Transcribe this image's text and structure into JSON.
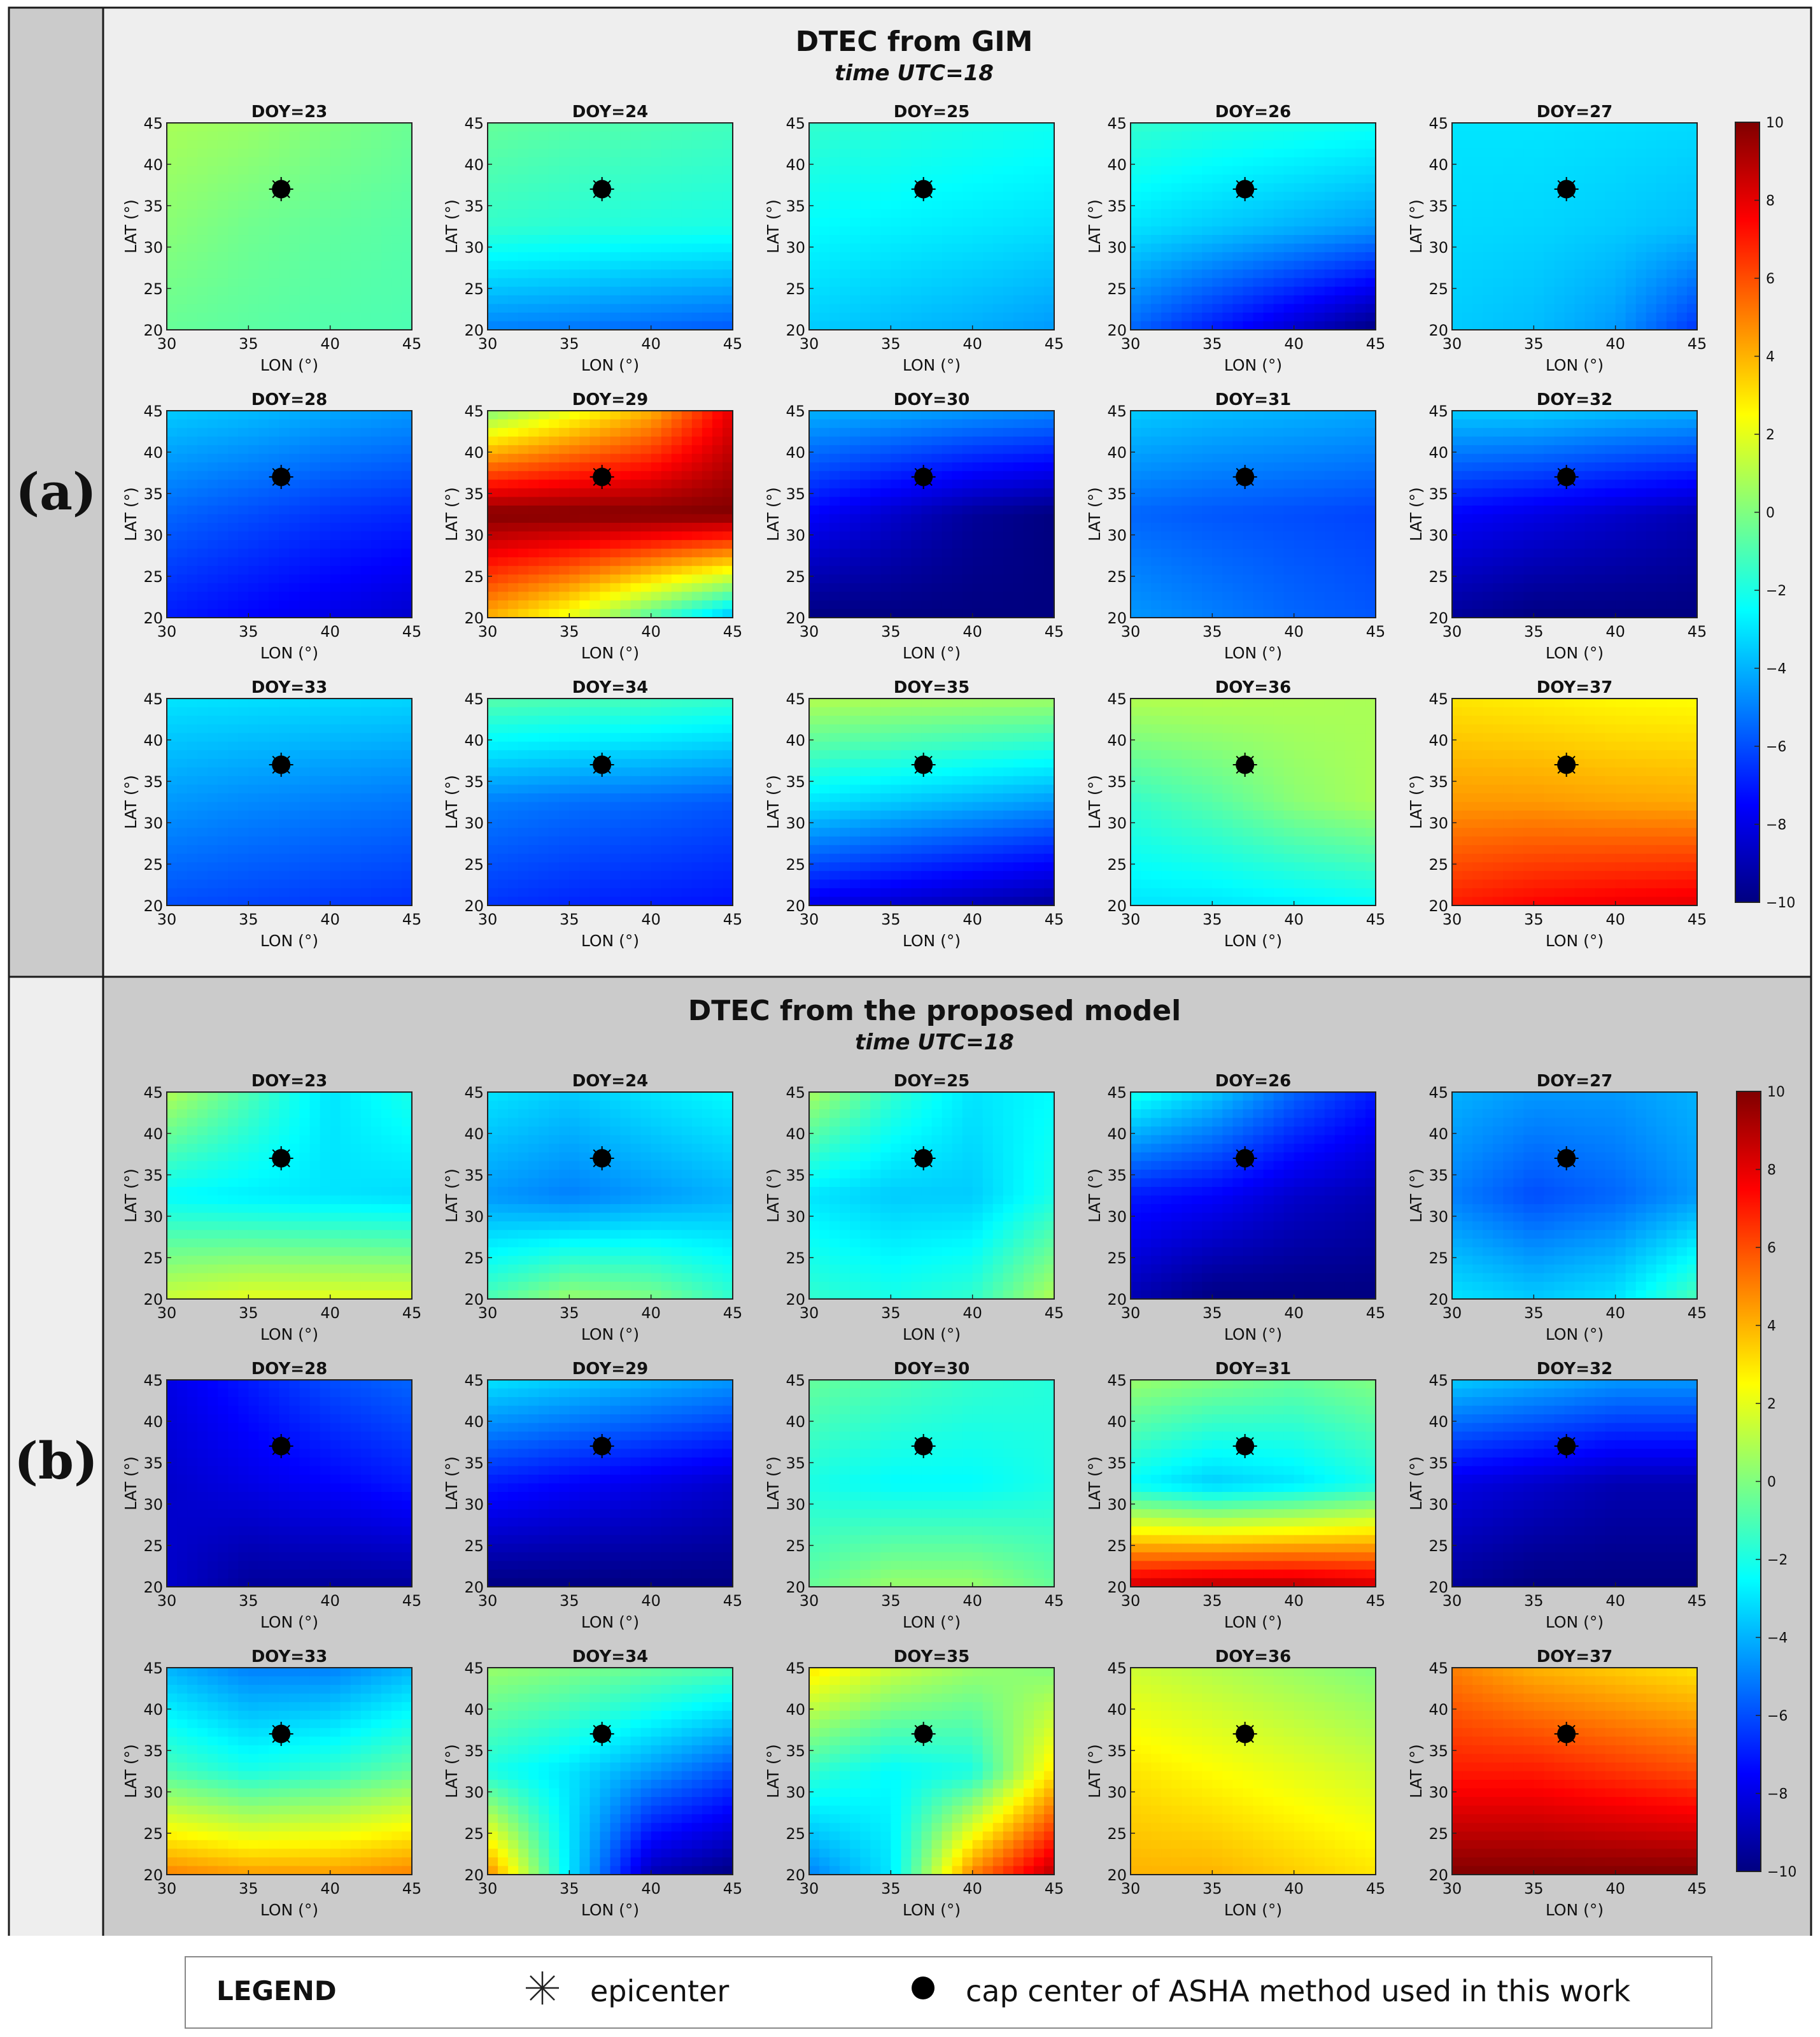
{
  "colors": {
    "panel_a_bg": "#eeeeee",
    "panel_b_bg": "#cbcbcb",
    "tab_a_bg": "#cbcbcb",
    "tab_b_bg": "#eeeeee",
    "border": "#1a1a1a"
  },
  "chart_data": [
    {
      "type": "heatmap",
      "panel_label": "(a)",
      "title": "DTEC from GIM",
      "subtitle": "time UTC=18",
      "xlabel": "LON (°)",
      "ylabel": "LAT (°)",
      "xlim": [
        30,
        45
      ],
      "ylim": [
        20,
        45
      ],
      "xticks": [
        30,
        35,
        40,
        45
      ],
      "yticks": [
        20,
        25,
        30,
        35,
        40,
        45
      ],
      "colorbar": {
        "vmin": -10,
        "vmax": 10,
        "ticks": [
          10,
          8,
          6,
          4,
          2,
          0,
          -2,
          -4,
          -6,
          -8,
          -10
        ]
      },
      "cap_center": {
        "lon": 37,
        "lat": 37
      },
      "subplots": [
        {
          "title": "DOY=23",
          "values": [
            [
              0.8,
              0.5,
              0.0,
              -0.4
            ],
            [
              0.2,
              -0.3,
              -0.6,
              -0.8
            ],
            [
              -0.5,
              -0.7,
              -0.9,
              -1.0
            ]
          ]
        },
        {
          "title": "DOY=24",
          "values": [
            [
              -0.5,
              -0.8,
              -1.0,
              -1.2
            ],
            [
              -1.5,
              -1.7,
              -1.9,
              -2.0
            ],
            [
              -5.0,
              -5.2,
              -5.5,
              -5.8
            ]
          ]
        },
        {
          "title": "DOY=25",
          "values": [
            [
              -1.5,
              -1.8,
              -2.0,
              -2.2
            ],
            [
              -2.5,
              -2.7,
              -2.9,
              -3.1
            ],
            [
              -3.5,
              -3.8,
              -4.1,
              -4.5
            ]
          ]
        },
        {
          "title": "DOY=26",
          "values": [
            [
              -1.5,
              -1.8,
              -2.0,
              -2.2
            ],
            [
              -3.0,
              -3.5,
              -4.0,
              -4.5
            ],
            [
              -5.5,
              -7.0,
              -8.5,
              -10.0
            ]
          ]
        },
        {
          "title": "DOY=27",
          "values": [
            [
              -3.0,
              -3.0,
              -3.1,
              -3.2
            ],
            [
              -3.2,
              -3.3,
              -3.5,
              -3.8
            ],
            [
              -3.5,
              -3.8,
              -4.5,
              -6.5
            ]
          ]
        },
        {
          "title": "DOY=28",
          "values": [
            [
              -3.5,
              -3.8,
              -4.2,
              -4.5
            ],
            [
              -5.5,
              -6.0,
              -6.5,
              -6.8
            ],
            [
              -7.0,
              -7.5,
              -8.0,
              -8.5
            ]
          ]
        },
        {
          "title": "DOY=29",
          "values": [
            [
              0,
              2,
              4,
              8
            ],
            [
              10,
              10,
              10,
              10
            ],
            [
              4,
              2,
              -1,
              -4
            ]
          ]
        },
        {
          "title": "DOY=30",
          "values": [
            [
              -4.0,
              -4.2,
              -4.5,
              -4.8
            ],
            [
              -7.5,
              -8.5,
              -9.5,
              -10.0
            ],
            [
              -10.0,
              -10.0,
              -10.0,
              -10.0
            ]
          ]
        },
        {
          "title": "DOY=31",
          "values": [
            [
              -3.5,
              -3.8,
              -4.0,
              -4.2
            ],
            [
              -5.5,
              -5.8,
              -6.0,
              -6.2
            ],
            [
              -4.5,
              -5.0,
              -5.5,
              -5.8
            ]
          ]
        },
        {
          "title": "DOY=32",
          "values": [
            [
              -3.5,
              -3.5,
              -3.8,
              -4.0
            ],
            [
              -7.5,
              -8.0,
              -8.5,
              -9.0
            ],
            [
              -9.5,
              -10.0,
              -10.0,
              -10.0
            ]
          ]
        },
        {
          "title": "DOY=33",
          "values": [
            [
              -3.0,
              -3.1,
              -3.2,
              -3.3
            ],
            [
              -4.5,
              -4.8,
              -5.0,
              -5.2
            ],
            [
              -6.0,
              -6.2,
              -6.4,
              -6.6
            ]
          ]
        },
        {
          "title": "DOY=34",
          "values": [
            [
              -0.8,
              -1.0,
              -1.2,
              -1.5
            ],
            [
              -5.0,
              -5.3,
              -5.5,
              -5.8
            ],
            [
              -6.5,
              -6.8,
              -7.0,
              -7.2
            ]
          ]
        },
        {
          "title": "DOY=35",
          "values": [
            [
              1.0,
              0.8,
              0.7,
              0.6
            ],
            [
              -3.0,
              -3.5,
              -4.0,
              -4.5
            ],
            [
              -8.0,
              -8.5,
              -9.0,
              -9.5
            ]
          ]
        },
        {
          "title": "DOY=36",
          "values": [
            [
              1.0,
              1.0,
              0.9,
              0.8
            ],
            [
              -1.5,
              -0.8,
              0.2,
              0.8
            ],
            [
              -3.0,
              -3.0,
              -2.8,
              -2.5
            ]
          ]
        },
        {
          "title": "DOY=37",
          "values": [
            [
              3.0,
              2.8,
              2.6,
              2.5
            ],
            [
              4.5,
              4.5,
              4.3,
              4.2
            ],
            [
              7.0,
              7.5,
              7.8,
              8.0
            ]
          ]
        }
      ]
    },
    {
      "type": "heatmap",
      "panel_label": "(b)",
      "title": "DTEC from the proposed model",
      "subtitle": "time UTC=18",
      "xlabel": "LON (°)",
      "ylabel": "LAT (°)",
      "xlim": [
        30,
        45
      ],
      "ylim": [
        20,
        45
      ],
      "xticks": [
        30,
        35,
        40,
        45
      ],
      "yticks": [
        20,
        25,
        30,
        35,
        40,
        45
      ],
      "colorbar": {
        "vmin": -10,
        "vmax": 10,
        "ticks": [
          10,
          8,
          6,
          4,
          2,
          0,
          -2,
          -4,
          -6,
          -8,
          -10
        ]
      },
      "cap_center": {
        "lon": 37,
        "lat": 37
      },
      "subplots": [
        {
          "title": "DOY=23",
          "values": [
            [
              1.0,
              -1.0,
              -3.0,
              -2.0
            ],
            [
              -2.5,
              -2.8,
              -3.0,
              -3.2
            ],
            [
              1.5,
              2.0,
              2.0,
              2.0
            ]
          ]
        },
        {
          "title": "DOY=24",
          "values": [
            [
              -3.0,
              -3.5,
              -3.0,
              -2.5
            ],
            [
              -4.5,
              -5.0,
              -4.5,
              -4.0
            ],
            [
              -1.0,
              0.5,
              0.0,
              -1.5
            ]
          ]
        },
        {
          "title": "DOY=25",
          "values": [
            [
              0.8,
              -1.5,
              -3.0,
              -2.5
            ],
            [
              -3.0,
              -3.5,
              -3.5,
              -2.0
            ],
            [
              -1.5,
              -2.0,
              -1.5,
              1.0
            ]
          ]
        },
        {
          "title": "DOY=26",
          "values": [
            [
              -2.0,
              -3.5,
              -5.5,
              -7.0
            ],
            [
              -7.0,
              -7.5,
              -8.5,
              -9.0
            ],
            [
              -9.0,
              -10.0,
              -10.0,
              -10.0
            ]
          ]
        },
        {
          "title": "DOY=27",
          "values": [
            [
              -4.0,
              -4.5,
              -4.5,
              -4.0
            ],
            [
              -5.0,
              -6.0,
              -5.5,
              -4.5
            ],
            [
              -3.0,
              -3.5,
              -3.0,
              -1.0
            ]
          ]
        },
        {
          "title": "DOY=28",
          "values": [
            [
              -8.0,
              -7.0,
              -6.0,
              -5.5
            ],
            [
              -8.5,
              -8.0,
              -7.5,
              -7.0
            ],
            [
              -8.5,
              -9.5,
              -9.5,
              -9.5
            ]
          ]
        },
        {
          "title": "DOY=29",
          "values": [
            [
              -3.0,
              -3.5,
              -4.0,
              -4.5
            ],
            [
              -7.0,
              -7.5,
              -8.0,
              -8.5
            ],
            [
              -10.0,
              -10.0,
              -10.0,
              -10.0
            ]
          ]
        },
        {
          "title": "DOY=30",
          "values": [
            [
              -0.5,
              -1.0,
              -1.5,
              -1.8
            ],
            [
              -2.0,
              -2.5,
              -2.5,
              -2.0
            ],
            [
              -0.5,
              0.5,
              0.5,
              -0.5
            ]
          ]
        },
        {
          "title": "DOY=31",
          "values": [
            [
              0.5,
              0.0,
              -0.5,
              0.0
            ],
            [
              -2.5,
              -3.5,
              -3.0,
              -2.0
            ],
            [
              8.5,
              9.0,
              9.0,
              8.5
            ]
          ]
        },
        {
          "title": "DOY=32",
          "values": [
            [
              -3.5,
              -4.0,
              -4.5,
              -4.5
            ],
            [
              -8.0,
              -8.5,
              -9.0,
              -9.0
            ],
            [
              -9.5,
              -10.0,
              -10.0,
              -10.0
            ]
          ]
        },
        {
          "title": "DOY=33",
          "values": [
            [
              -4.0,
              -5.0,
              -5.0,
              -4.0
            ],
            [
              -1.0,
              -2.0,
              -1.5,
              -0.5
            ],
            [
              5.0,
              4.5,
              4.5,
              5.0
            ]
          ]
        },
        {
          "title": "DOY=34",
          "values": [
            [
              0.5,
              0.0,
              -0.5,
              -1.0
            ],
            [
              -2.0,
              -3.0,
              -4.5,
              -6.0
            ],
            [
              5.0,
              -3.0,
              -9.0,
              -10.0
            ]
          ]
        },
        {
          "title": "DOY=35",
          "values": [
            [
              3.0,
              1.5,
              0.5,
              0.0
            ],
            [
              -1.5,
              -2.5,
              -2.0,
              3.0
            ],
            [
              -5.0,
              -3.0,
              5.0,
              9.0
            ]
          ]
        },
        {
          "title": "DOY=36",
          "values": [
            [
              1.5,
              1.0,
              0.5,
              0.0
            ],
            [
              3.0,
              2.5,
              2.0,
              1.5
            ],
            [
              4.0,
              4.0,
              3.5,
              3.0
            ]
          ]
        },
        {
          "title": "DOY=37",
          "values": [
            [
              5.0,
              4.0,
              3.5,
              3.0
            ],
            [
              7.0,
              7.0,
              6.5,
              6.0
            ],
            [
              10.0,
              10.0,
              10.0,
              10.0
            ]
          ]
        }
      ]
    }
  ],
  "legend": {
    "title": "LEGEND",
    "items": [
      {
        "symbol": "asterisk",
        "label": "epicenter"
      },
      {
        "symbol": "filled-circle",
        "label": "cap center of ASHA method used in this work"
      }
    ]
  }
}
